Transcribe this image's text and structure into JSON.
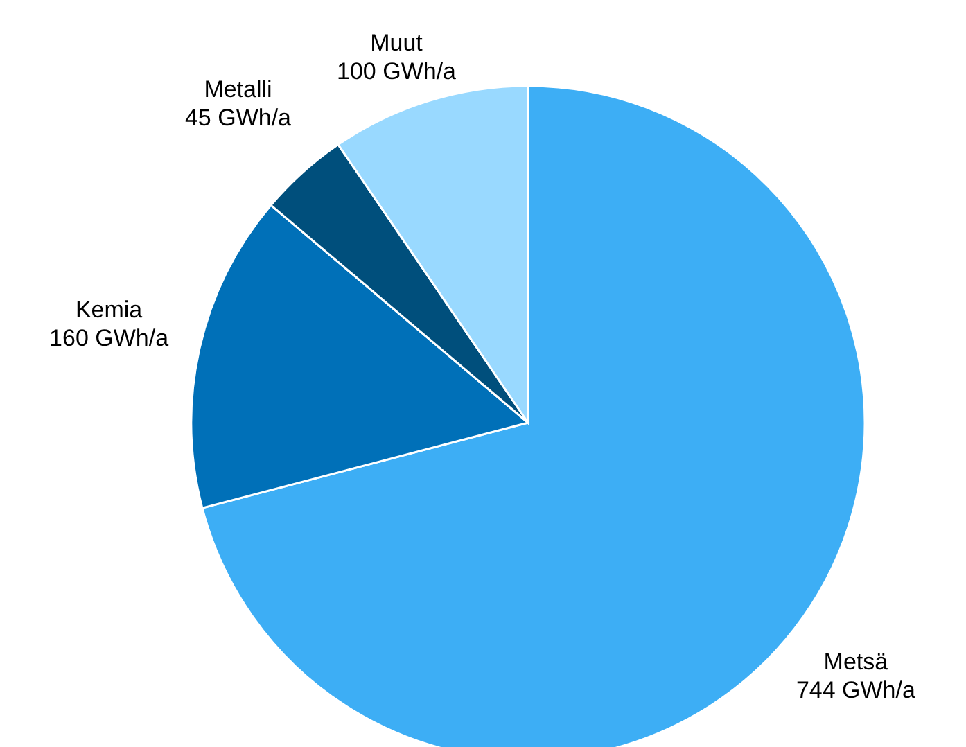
{
  "chart_data": {
    "type": "pie",
    "categories": [
      "Metsä",
      "Kemia",
      "Metalli",
      "Muut"
    ],
    "values": [
      744,
      160,
      45,
      100
    ],
    "colors": [
      "#3daef5",
      "#0070b8",
      "#004f7c",
      "#99d9ff"
    ],
    "value_labels": [
      "744 GWh/a",
      "160 GWh/a",
      "45 GWh/a",
      "100 GWh/a"
    ],
    "legend": false
  }
}
